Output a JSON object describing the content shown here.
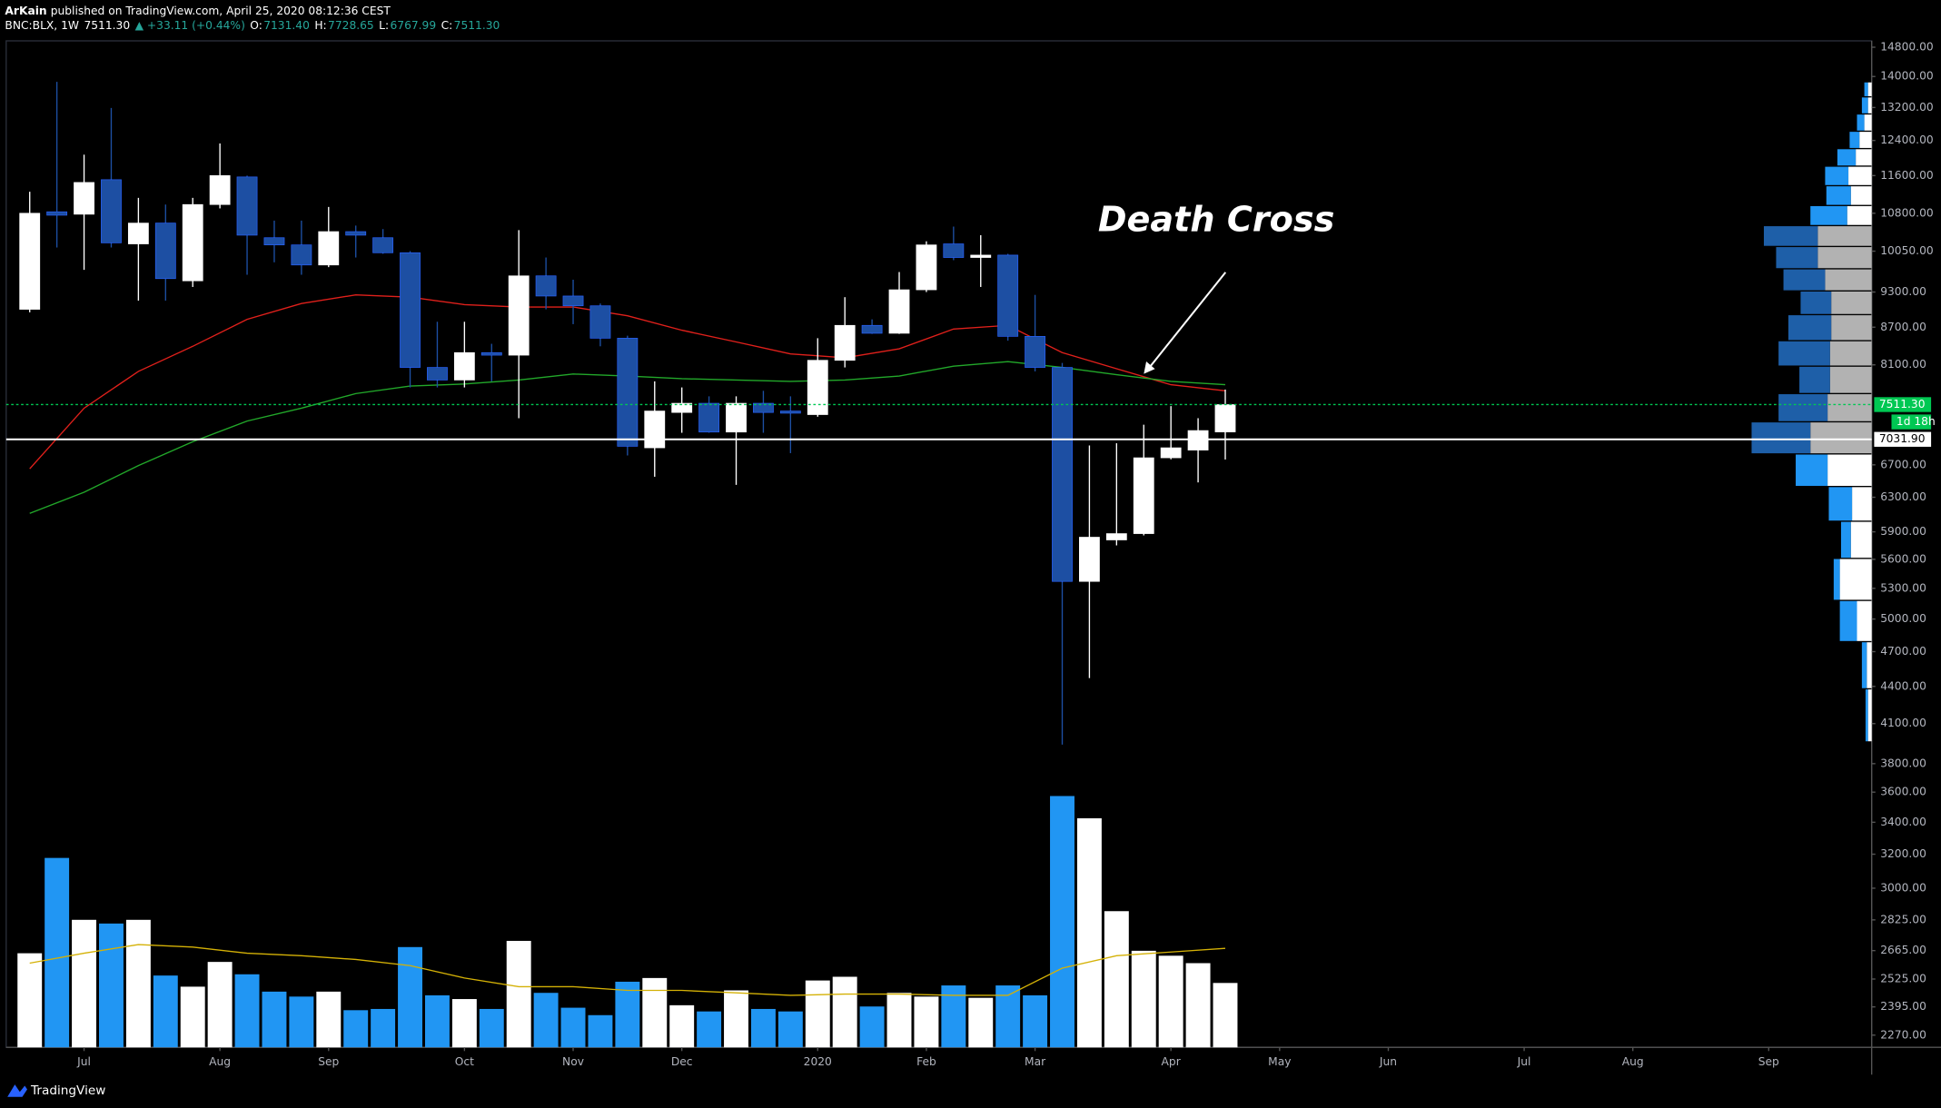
{
  "header": {
    "author": "ArKain",
    "published": "published on TradingView.com, April 25, 2020 08:12:36 CEST",
    "symbol": "BNC:BLX, 1W",
    "last": "7511.30",
    "change": "▲ +33.11 (+0.44%)",
    "ohlc": [
      {
        "label": "O:",
        "value": "7131.40"
      },
      {
        "label": "H:",
        "value": "7728.65"
      },
      {
        "label": "L:",
        "value": "6767.99"
      },
      {
        "label": "C:",
        "value": "7511.30"
      }
    ]
  },
  "footer": {
    "brand": "TradingView"
  },
  "chart_data": {
    "type": "candlestick",
    "log": true,
    "up_color": "#ffffff",
    "down_color": "#1d4fa3",
    "x": [
      0,
      1,
      2,
      3,
      4,
      5,
      6,
      7,
      8,
      9,
      10,
      11,
      12,
      13,
      14,
      15,
      16,
      17,
      18,
      19,
      20,
      21,
      22,
      23,
      24,
      25,
      26,
      27,
      28,
      29,
      30,
      31,
      32,
      33,
      34,
      35,
      36,
      37,
      38,
      39,
      40,
      41,
      42,
      43,
      44
    ],
    "open": [
      9000,
      10830,
      10780,
      11510,
      10190,
      10600,
      9500,
      10980,
      11570,
      10310,
      10170,
      9790,
      10430,
      10310,
      10020,
      8060,
      7870,
      8290,
      8250,
      9590,
      9230,
      9060,
      8520,
      6920,
      7400,
      7530,
      7130,
      7530,
      7420,
      7370,
      8170,
      8730,
      8600,
      9340,
      10190,
      9930,
      9975,
      8550,
      8060,
      5370,
      5810,
      5880,
      6790,
      6890,
      7131.4
    ],
    "high": [
      11250,
      13860,
      12070,
      13190,
      11120,
      10980,
      11120,
      12330,
      11600,
      10650,
      10650,
      10930,
      10550,
      10480,
      10050,
      8790,
      8790,
      8430,
      10460,
      9930,
      9520,
      9100,
      8560,
      7850,
      7760,
      7630,
      7630,
      7710,
      7630,
      8520,
      9210,
      8830,
      9660,
      10240,
      10530,
      10360,
      10000,
      9250,
      8130,
      6950,
      6980,
      7230,
      7490,
      7320,
      7728.65
    ],
    "low": [
      8950,
      10120,
      9700,
      10120,
      9150,
      9150,
      9390,
      10900,
      9610,
      9840,
      9610,
      9750,
      9930,
      10000,
      7760,
      7760,
      7760,
      7850,
      7320,
      9000,
      8750,
      8390,
      6820,
      6550,
      7120,
      7120,
      6450,
      7120,
      6850,
      7340,
      8060,
      8590,
      8590,
      9300,
      9880,
      9390,
      8480,
      8000,
      3940,
      4470,
      5750,
      5860,
      6770,
      6480,
      6767.99
    ],
    "close": [
      10800,
      10760,
      11450,
      10210,
      10600,
      9540,
      10980,
      11600,
      10360,
      10170,
      9790,
      10430,
      10360,
      10020,
      8060,
      7870,
      8290,
      8250,
      9590,
      9230,
      9060,
      8520,
      6940,
      7420,
      7530,
      7130,
      7530,
      7400,
      7390,
      8170,
      8730,
      8600,
      9340,
      10170,
      9930,
      9975,
      8550,
      8060,
      5370,
      5840,
      5880,
      6790,
      6920,
      7150,
      7511.3
    ],
    "volume": {
      "up_color": "#ffffff",
      "down_color": "#2196f3",
      "values": [
        76,
        153,
        103,
        100,
        103,
        58,
        49,
        69,
        59,
        45,
        41,
        45,
        30,
        31,
        81,
        42,
        39,
        31,
        86,
        44,
        32,
        26,
        53,
        56,
        34,
        29,
        46,
        31,
        29,
        54,
        57,
        33,
        44,
        41,
        50,
        40,
        50,
        42,
        203,
        185,
        110,
        78,
        74,
        68,
        52
      ]
    },
    "volume_ma": {
      "color": "#d4b106",
      "x": [
        0,
        2,
        4,
        6,
        8,
        10,
        12,
        14,
        16,
        18,
        20,
        22,
        24,
        26,
        28,
        30,
        32,
        34,
        36,
        38,
        40,
        42,
        44
      ],
      "values": [
        68,
        76,
        83,
        81,
        76,
        74,
        71,
        66,
        56,
        49,
        49,
        46,
        46,
        44,
        42,
        43,
        43,
        42,
        42,
        64,
        74,
        77,
        80
      ]
    },
    "ma": [
      {
        "color": "#e0201b",
        "x": [
          0,
          2,
          4,
          6,
          8,
          10,
          12,
          14,
          16,
          18,
          20,
          22,
          24,
          26,
          28,
          30,
          32,
          34,
          36,
          38,
          40,
          42,
          44
        ],
        "values": [
          6650,
          7460,
          8000,
          8390,
          8830,
          9100,
          9250,
          9210,
          9080,
          9040,
          9040,
          8890,
          8650,
          8460,
          8270,
          8210,
          8350,
          8670,
          8730,
          8290,
          8040,
          7800,
          7710
        ]
      },
      {
        "color": "#22a82a",
        "x": [
          0,
          2,
          4,
          6,
          8,
          10,
          12,
          14,
          16,
          18,
          20,
          22,
          24,
          26,
          28,
          30,
          32,
          34,
          36,
          38,
          40,
          42,
          44
        ],
        "values": [
          6110,
          6360,
          6690,
          7000,
          7280,
          7460,
          7670,
          7780,
          7810,
          7870,
          7960,
          7930,
          7890,
          7870,
          7850,
          7870,
          7930,
          8080,
          8150,
          8060,
          7950,
          7850,
          7800
        ]
      }
    ],
    "ylim": [
      2218,
      14980
    ],
    "yticks": [
      {
        "value": 14800,
        "label": "14800.00"
      },
      {
        "value": 14000,
        "label": "14000.00"
      },
      {
        "value": 13200,
        "label": "13200.00"
      },
      {
        "value": 12400,
        "label": "12400.00"
      },
      {
        "value": 11600,
        "label": "11600.00"
      },
      {
        "value": 10800,
        "label": "10800.00"
      },
      {
        "value": 10050,
        "label": "10050.00"
      },
      {
        "value": 9300,
        "label": "9300.00"
      },
      {
        "value": 8700,
        "label": "8700.00"
      },
      {
        "value": 8100,
        "label": "8100.00"
      },
      {
        "value": 6700,
        "label": "6700.00"
      },
      {
        "value": 6300,
        "label": "6300.00"
      },
      {
        "value": 5900,
        "label": "5900.00"
      },
      {
        "value": 5600,
        "label": "5600.00"
      },
      {
        "value": 5300,
        "label": "5300.00"
      },
      {
        "value": 5000,
        "label": "5000.00"
      },
      {
        "value": 4700,
        "label": "4700.00"
      },
      {
        "value": 4400,
        "label": "4400.00"
      },
      {
        "value": 4100,
        "label": "4100.00"
      },
      {
        "value": 3800,
        "label": "3800.00"
      },
      {
        "value": 3600,
        "label": "3600.00"
      },
      {
        "value": 3400,
        "label": "3400.00"
      },
      {
        "value": 3200,
        "label": "3200.00"
      },
      {
        "value": 3000,
        "label": "3000.00"
      },
      {
        "value": 2825,
        "label": "2825.00"
      },
      {
        "value": 2665,
        "label": "2665.00"
      },
      {
        "value": 2525,
        "label": "2525.00"
      },
      {
        "value": 2395,
        "label": "2395.00"
      },
      {
        "value": 2270,
        "label": "2270.00"
      }
    ],
    "xlim": [
      -0.866,
      67.79
    ],
    "xticks": [
      {
        "value": 2,
        "label": "Jul"
      },
      {
        "value": 7,
        "label": "Aug"
      },
      {
        "value": 11,
        "label": "Sep"
      },
      {
        "value": 16,
        "label": "Oct"
      },
      {
        "value": 20,
        "label": "Nov"
      },
      {
        "value": 24,
        "label": "Dec"
      },
      {
        "value": 29,
        "label": "2020"
      },
      {
        "value": 33,
        "label": "Feb"
      },
      {
        "value": 37,
        "label": "Mar"
      },
      {
        "value": 42,
        "label": "Apr"
      },
      {
        "value": 46,
        "label": "May"
      },
      {
        "value": 50,
        "label": "Jun"
      },
      {
        "value": 55,
        "label": "Jul"
      },
      {
        "value": 59,
        "label": "Aug"
      },
      {
        "value": 64,
        "label": "Sep"
      }
    ],
    "hlines": [
      {
        "value": 7511.3,
        "label": "7511.30",
        "color": "#00c853",
        "style": "dotted"
      },
      {
        "value": 7031.9,
        "label": "7031.90",
        "color": "#ffffff",
        "style": "solid"
      }
    ],
    "countdown": "1d 18h",
    "annotation": "Death Cross",
    "volume_profile": {
      "up_color": "#ffffff",
      "down_color": "#2196f3",
      "value_area": {
        "low": 6840,
        "high": 10550,
        "up_color": "#b2b2b2",
        "down_color": "#1e5fa8"
      },
      "bounds": [
        13860,
        13470,
        13040,
        12620,
        12210,
        11810,
        11380,
        10960,
        10550,
        10140,
        9720,
        9320,
        8910,
        8480,
        8080,
        7670,
        7270,
        6840,
        6430,
        6020,
        5610,
        5180,
        4790,
        4380,
        3960
      ],
      "down": [
        3,
        5,
        6,
        8,
        15,
        19,
        20,
        30,
        44,
        34,
        34,
        25,
        35,
        42,
        25,
        40,
        48,
        26,
        19,
        8,
        5,
        14,
        4,
        2
      ],
      "up": [
        3,
        3,
        6,
        10,
        13,
        19,
        17,
        20,
        44,
        44,
        38,
        33,
        33,
        34,
        34,
        36,
        50,
        36,
        16,
        17,
        26,
        12,
        4,
        3
      ]
    }
  }
}
